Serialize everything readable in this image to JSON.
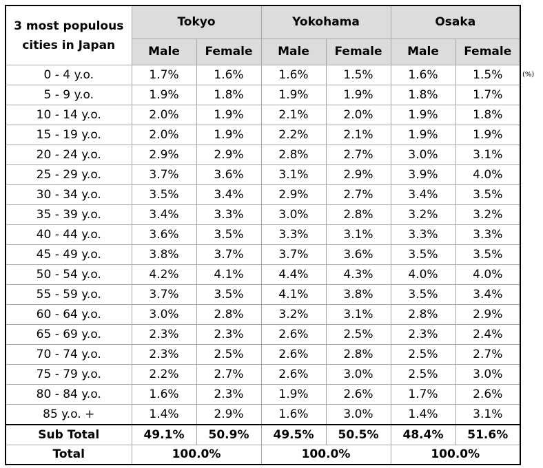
{
  "chart_data": {
    "type": "table",
    "title": "3 most populous cities in Japan",
    "unit": "(%)",
    "cities": [
      "Tokyo",
      "Yokohama",
      "Osaka"
    ],
    "sexes": [
      "Male",
      "Female"
    ],
    "rows": [
      {
        "age": "0 - 4 y.o.",
        "cells": [
          "1.7%",
          "1.6%",
          "1.6%",
          "1.5%",
          "1.6%",
          "1.5%"
        ]
      },
      {
        "age": "5 - 9 y.o.",
        "cells": [
          "1.9%",
          "1.8%",
          "1.9%",
          "1.9%",
          "1.8%",
          "1.7%"
        ]
      },
      {
        "age": "10 - 14 y.o.",
        "cells": [
          "2.0%",
          "1.9%",
          "2.1%",
          "2.0%",
          "1.9%",
          "1.8%"
        ]
      },
      {
        "age": "15 - 19 y.o.",
        "cells": [
          "2.0%",
          "1.9%",
          "2.2%",
          "2.1%",
          "1.9%",
          "1.9%"
        ]
      },
      {
        "age": "20 - 24 y.o.",
        "cells": [
          "2.9%",
          "2.9%",
          "2.8%",
          "2.7%",
          "3.0%",
          "3.1%"
        ]
      },
      {
        "age": "25 - 29 y.o.",
        "cells": [
          "3.7%",
          "3.6%",
          "3.1%",
          "2.9%",
          "3.9%",
          "4.0%"
        ]
      },
      {
        "age": "30 - 34 y.o.",
        "cells": [
          "3.5%",
          "3.4%",
          "2.9%",
          "2.7%",
          "3.4%",
          "3.5%"
        ]
      },
      {
        "age": "35 - 39 y.o.",
        "cells": [
          "3.4%",
          "3.3%",
          "3.0%",
          "2.8%",
          "3.2%",
          "3.2%"
        ]
      },
      {
        "age": "40 - 44 y.o.",
        "cells": [
          "3.6%",
          "3.5%",
          "3.3%",
          "3.1%",
          "3.3%",
          "3.3%"
        ]
      },
      {
        "age": "45 - 49 y.o.",
        "cells": [
          "3.8%",
          "3.7%",
          "3.7%",
          "3.6%",
          "3.5%",
          "3.5%"
        ]
      },
      {
        "age": "50 - 54 y.o.",
        "cells": [
          "4.2%",
          "4.1%",
          "4.4%",
          "4.3%",
          "4.0%",
          "4.0%"
        ]
      },
      {
        "age": "55 - 59 y.o.",
        "cells": [
          "3.7%",
          "3.5%",
          "4.1%",
          "3.8%",
          "3.5%",
          "3.4%"
        ]
      },
      {
        "age": "60 - 64 y.o.",
        "cells": [
          "3.0%",
          "2.8%",
          "3.2%",
          "3.1%",
          "2.8%",
          "2.9%"
        ]
      },
      {
        "age": "65 - 69 y.o.",
        "cells": [
          "2.3%",
          "2.3%",
          "2.6%",
          "2.5%",
          "2.3%",
          "2.4%"
        ]
      },
      {
        "age": "70 - 74 y.o.",
        "cells": [
          "2.3%",
          "2.5%",
          "2.6%",
          "2.8%",
          "2.5%",
          "2.7%"
        ]
      },
      {
        "age": "75 - 79 y.o.",
        "cells": [
          "2.2%",
          "2.7%",
          "2.6%",
          "3.0%",
          "2.5%",
          "3.0%"
        ]
      },
      {
        "age": "80 - 84 y.o.",
        "cells": [
          "1.6%",
          "2.3%",
          "1.9%",
          "2.6%",
          "1.7%",
          "2.6%"
        ]
      },
      {
        "age": "85 y.o. +",
        "cells": [
          "1.4%",
          "2.9%",
          "1.6%",
          "3.0%",
          "1.4%",
          "3.1%"
        ]
      }
    ],
    "subtotal": {
      "label": "Sub Total",
      "cells": [
        "49.1%",
        "50.9%",
        "49.5%",
        "50.5%",
        "48.4%",
        "51.6%"
      ]
    },
    "total": {
      "label": "Total",
      "cells": [
        "100.0%",
        "100.0%",
        "100.0%"
      ]
    }
  },
  "colors": {
    "header_fill": "#dcdcdc",
    "grid": "#a6a6a6",
    "frame": "#000000"
  }
}
